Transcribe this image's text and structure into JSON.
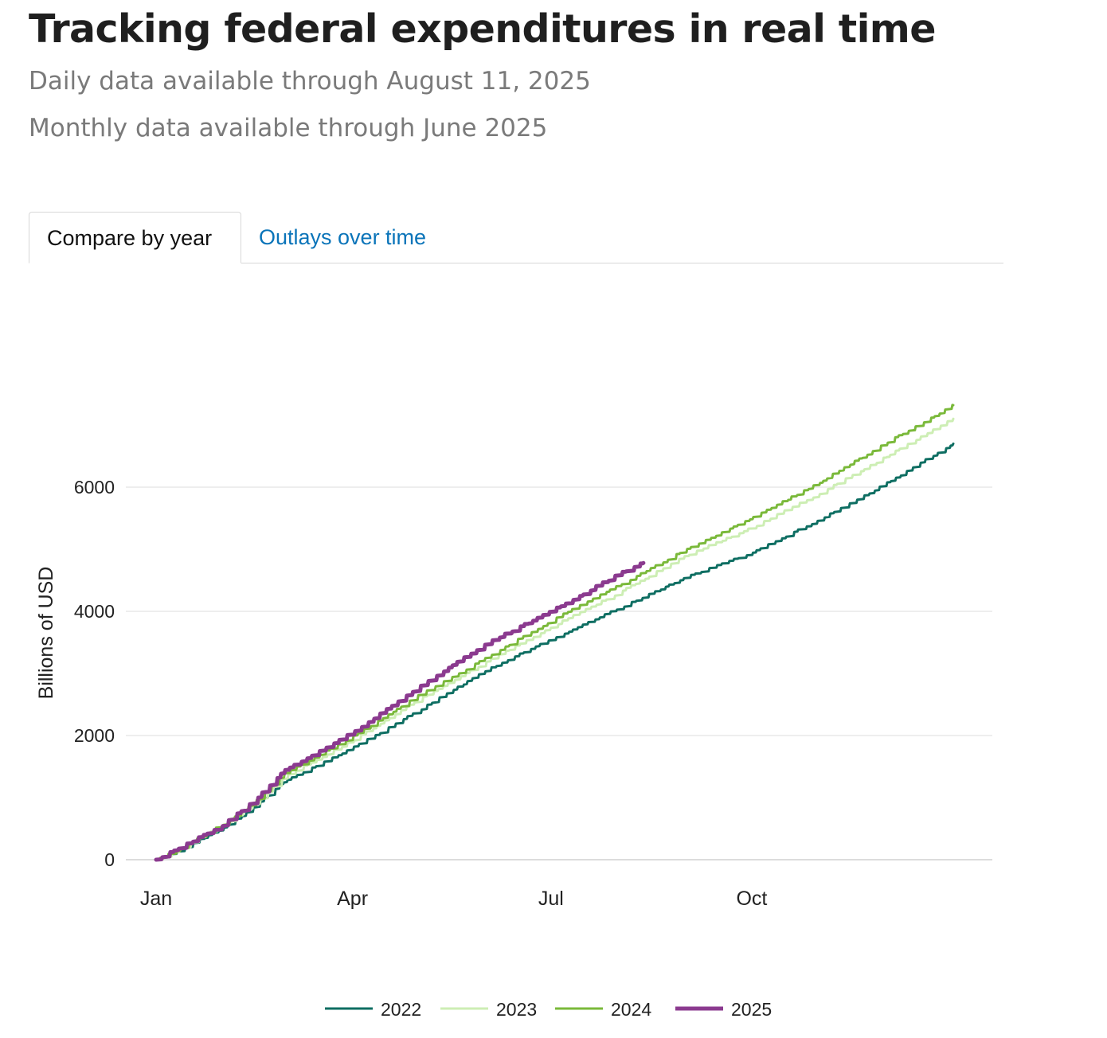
{
  "page": {
    "title": "Tracking federal expenditures in real time",
    "subtitle_daily": "Daily data available through August 11, 2025",
    "subtitle_monthly": "Monthly data available through June 2025"
  },
  "tabs": [
    {
      "label": "Compare by year",
      "active": true
    },
    {
      "label": "Outlays over time",
      "active": false
    }
  ],
  "chart_data": {
    "type": "line",
    "title": "",
    "xlabel": "",
    "ylabel": "Billions of USD",
    "ylim": [
      0,
      7600
    ],
    "xlim": [
      0,
      365
    ],
    "x_ticks": [
      {
        "label": "Jan",
        "day": 0
      },
      {
        "label": "Apr",
        "day": 90
      },
      {
        "label": "Jul",
        "day": 181
      },
      {
        "label": "Oct",
        "day": 273
      }
    ],
    "y_ticks": [
      0,
      2000,
      4000,
      6000
    ],
    "grid": true,
    "legend_position": "bottom",
    "series": [
      {
        "name": "2022",
        "color": "#0e6e62",
        "width": 3,
        "points": [
          [
            0,
            0
          ],
          [
            10,
            150
          ],
          [
            30,
            500
          ],
          [
            45,
            850
          ],
          [
            59,
            1280
          ],
          [
            90,
            1800
          ],
          [
            120,
            2400
          ],
          [
            151,
            3050
          ],
          [
            181,
            3550
          ],
          [
            212,
            4050
          ],
          [
            243,
            4550
          ],
          [
            273,
            4950
          ],
          [
            304,
            5480
          ],
          [
            334,
            6050
          ],
          [
            365,
            6700
          ]
        ]
      },
      {
        "name": "2023",
        "color": "#cdeeb4",
        "width": 3,
        "points": [
          [
            0,
            0
          ],
          [
            10,
            160
          ],
          [
            30,
            540
          ],
          [
            45,
            900
          ],
          [
            59,
            1350
          ],
          [
            90,
            1920
          ],
          [
            120,
            2580
          ],
          [
            151,
            3180
          ],
          [
            181,
            3750
          ],
          [
            212,
            4300
          ],
          [
            243,
            4900
          ],
          [
            273,
            5350
          ],
          [
            304,
            5900
          ],
          [
            334,
            6480
          ],
          [
            365,
            7100
          ]
        ]
      },
      {
        "name": "2024",
        "color": "#7ab93a",
        "width": 3,
        "points": [
          [
            0,
            0
          ],
          [
            10,
            160
          ],
          [
            30,
            560
          ],
          [
            45,
            930
          ],
          [
            59,
            1400
          ],
          [
            90,
            1980
          ],
          [
            120,
            2640
          ],
          [
            151,
            3250
          ],
          [
            181,
            3850
          ],
          [
            212,
            4420
          ],
          [
            243,
            5000
          ],
          [
            273,
            5500
          ],
          [
            304,
            6080
          ],
          [
            334,
            6700
          ],
          [
            365,
            7320
          ]
        ]
      },
      {
        "name": "2025",
        "color": "#8b3a8f",
        "width": 5,
        "points": [
          [
            0,
            0
          ],
          [
            10,
            180
          ],
          [
            30,
            550
          ],
          [
            45,
            950
          ],
          [
            59,
            1450
          ],
          [
            90,
            2050
          ],
          [
            120,
            2780
          ],
          [
            151,
            3480
          ],
          [
            181,
            4000
          ],
          [
            212,
            4600
          ],
          [
            223,
            4780
          ]
        ]
      }
    ]
  }
}
